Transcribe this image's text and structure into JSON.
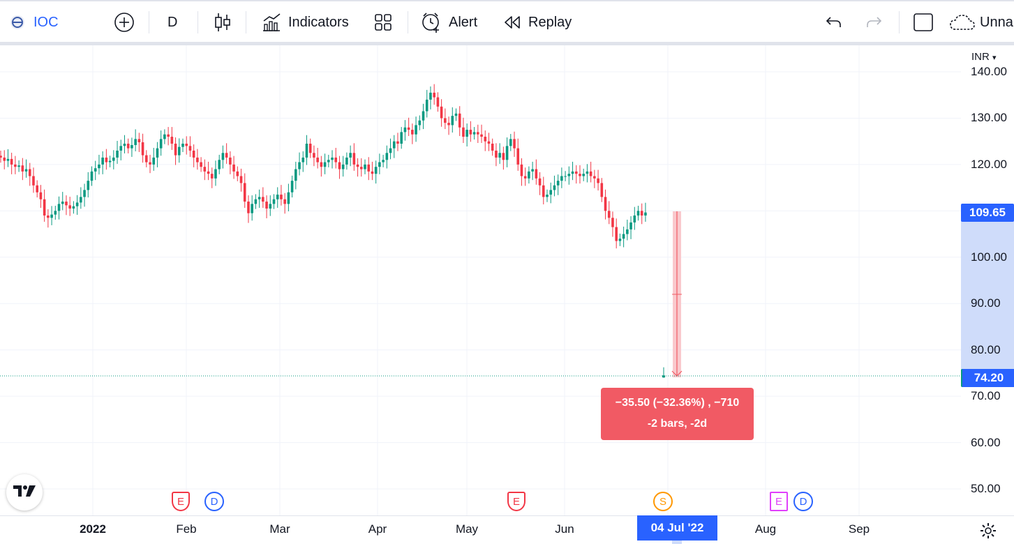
{
  "toolbar": {
    "symbol": "IOC",
    "interval": "D",
    "indicators_label": "Indicators",
    "alert_label": "Alert",
    "replay_label": "Replay",
    "layout_name": "Unnamed",
    "icons": [
      "symbol-logo-icon",
      "add-symbol-icon",
      "candles-icon",
      "indicators-icon",
      "templates-icon",
      "alert-icon",
      "replay-icon",
      "undo-icon",
      "redo-icon",
      "fullscreen-icon",
      "cloud-icon"
    ]
  },
  "price_scale": {
    "currency": "INR",
    "labels": [
      "140.00",
      "130.00",
      "120.00",
      "110.00",
      "100.00",
      "90.00",
      "80.00",
      "70.00",
      "60.00",
      "50.00"
    ],
    "last_price": "109.65",
    "cursor_price": "74.20"
  },
  "time_scale": {
    "labels": [
      "2022",
      "Feb",
      "Mar",
      "Apr",
      "May",
      "Jun",
      "Aug",
      "Sep"
    ],
    "cursor_date": "04 Jul '22"
  },
  "measure": {
    "line1": "−35.50 (−32.36%) , −710",
    "line2": "-2 bars, -2d"
  },
  "events": [
    {
      "type": "earnings",
      "label": "E",
      "color": "#f23645"
    },
    {
      "type": "dividend",
      "label": "D",
      "color": "#2962ff"
    },
    {
      "type": "earnings",
      "label": "E",
      "color": "#f23645"
    },
    {
      "type": "split",
      "label": "S",
      "color": "#ff9800"
    },
    {
      "type": "earnings",
      "label": "E",
      "color": "#e040fb"
    },
    {
      "type": "dividend",
      "label": "D",
      "color": "#2962ff"
    }
  ],
  "colors": {
    "up": "#089981",
    "down": "#f23645",
    "accent": "#2962ff",
    "measure": "#f15a64"
  },
  "chart_data": {
    "type": "candlestick",
    "ylim": [
      47,
      144
    ],
    "closes": [
      121.5,
      120.8,
      121.2,
      120.0,
      119.5,
      119.8,
      118.5,
      119.0,
      117.5,
      115.5,
      114.0,
      112.5,
      109.0,
      108.5,
      109.2,
      110.0,
      111.5,
      112.0,
      111.2,
      110.5,
      111.0,
      111.8,
      113.0,
      114.5,
      116.5,
      118.5,
      119.2,
      120.0,
      121.5,
      120.5,
      120.8,
      121.5,
      123.0,
      124.0,
      124.5,
      123.5,
      124.2,
      125.5,
      124.8,
      122.0,
      120.5,
      120.0,
      121.5,
      123.5,
      125.5,
      126.5,
      126.0,
      124.5,
      122.0,
      123.8,
      124.5,
      124.0,
      123.0,
      121.5,
      120.5,
      119.5,
      118.5,
      118.0,
      117.0,
      119.0,
      121.0,
      122.5,
      121.5,
      120.0,
      118.5,
      117.5,
      116.0,
      112.0,
      109.5,
      111.5,
      112.5,
      113.0,
      112.0,
      110.5,
      111.5,
      112.5,
      113.5,
      112.5,
      111.5,
      114.0,
      116.5,
      119.0,
      120.5,
      121.5,
      124.5,
      122.5,
      121.5,
      120.5,
      119.5,
      120.5,
      121.0,
      121.5,
      120.5,
      119.0,
      120.0,
      121.5,
      122.5,
      120.0,
      119.5,
      119.0,
      120.0,
      118.5,
      118.0,
      119.5,
      120.5,
      121.0,
      122.5,
      123.5,
      125.0,
      124.5,
      127.0,
      128.0,
      127.5,
      126.5,
      128.5,
      129.5,
      131.5,
      134.0,
      135.5,
      134.5,
      132.5,
      130.0,
      129.0,
      128.5,
      130.5,
      131.0,
      128.0,
      126.0,
      127.5,
      126.5,
      127.0,
      126.5,
      126.0,
      125.0,
      124.5,
      123.0,
      121.5,
      122.5,
      121.0,
      124.0,
      125.5,
      123.5,
      120.0,
      117.5,
      117.0,
      118.5,
      119.0,
      117.0,
      115.5,
      113.0,
      113.5,
      114.5,
      115.5,
      116.5,
      117.5,
      117.5,
      118.0,
      118.5,
      118.0,
      117.5,
      118.0,
      118.5,
      117.5,
      117.0,
      116.0,
      113.0,
      110.0,
      108.5,
      106.5,
      103.5,
      104.0,
      105.0,
      106.0,
      107.5,
      109.0,
      110.0,
      109.0,
      109.65
    ],
    "partial_bar": {
      "open": 74.2,
      "high": 75.5,
      "low": 74.0,
      "close": 74.2
    },
    "measure_from": 109.65,
    "measure_to": 74.2
  }
}
